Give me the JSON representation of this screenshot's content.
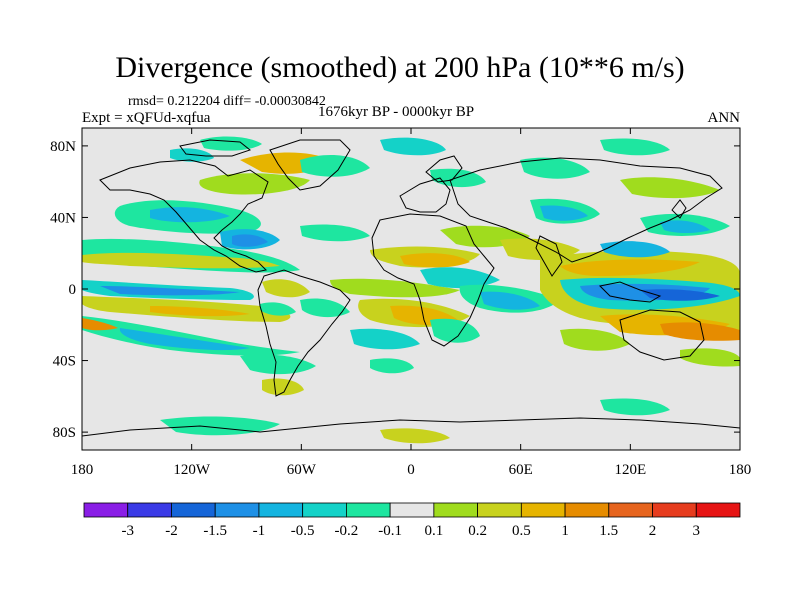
{
  "title": "Divergence (smoothed) at 200 hPa (10**6 m/s)",
  "stats": "rmsd= 0.212204  diff= -0.00030842",
  "experiment": "Expt = xQFUd-xqfua",
  "period": "1676kyr BP - 0000kyr BP",
  "season": "ANN",
  "lat_ticks": [
    "80N",
    "40N",
    "0",
    "40S",
    "80S"
  ],
  "lon_ticks": [
    "180",
    "120W",
    "60W",
    "0",
    "60E",
    "120E",
    "180"
  ],
  "colorbar": {
    "labels": [
      "-3",
      "-2",
      "-1.5",
      "-1",
      "-0.5",
      "-0.2",
      "-0.1",
      "0.1",
      "0.2",
      "0.5",
      "1",
      "1.5",
      "2",
      "3"
    ],
    "colors": [
      "#8a1ee6",
      "#3a3ae6",
      "#1565d8",
      "#1e90e6",
      "#14b4e0",
      "#14d2c8",
      "#1ee6a0",
      "#e6e6e6",
      "#a0dc1e",
      "#c8d21e",
      "#e6b400",
      "#e68c00",
      "#e6641e",
      "#e63c1e",
      "#e61414"
    ]
  },
  "colors": {
    "background": "#e6e6e6",
    "coast": "#000000"
  }
}
